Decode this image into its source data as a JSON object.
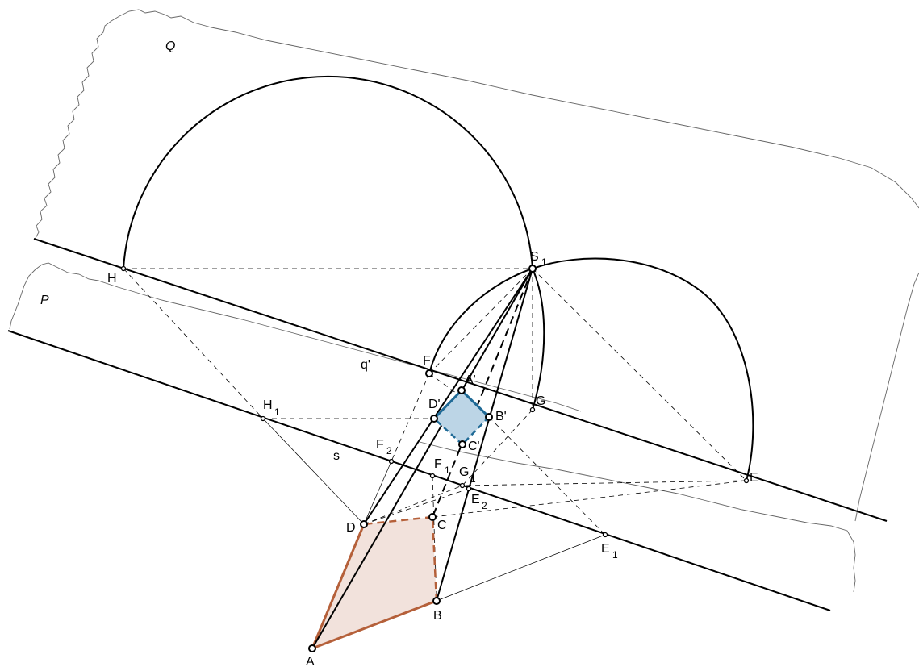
{
  "plane_labels": {
    "Q": "Q",
    "P": "P"
  },
  "line_labels": {
    "q_prime": "q'",
    "s": "s"
  },
  "points": {
    "A": "A",
    "B": "B",
    "C": "C",
    "D": "D",
    "A_prime": "A'",
    "B_prime": "B'",
    "C_prime": "C'",
    "D_prime": "D'",
    "S": "S",
    "S_sub": "1",
    "H": "H",
    "H1": "H",
    "H1_sub": "1",
    "F": "F",
    "F1": "F",
    "F1_sub": "1",
    "F2": "F",
    "F2_sub": "2",
    "G": "G",
    "G1": "G",
    "G1_sub": "1",
    "E": "E",
    "E1": "E",
    "E1_sub": "1",
    "E2": "E",
    "E2_sub": "2"
  },
  "colors": {
    "original_quad_stroke": "#b5603a",
    "original_quad_fill": "#f2e2dc",
    "image_quad_stroke": "#1f6a96",
    "image_quad_fill": "#bcd5e6",
    "ink": "#000000",
    "sheet_edge": "#666666"
  }
}
